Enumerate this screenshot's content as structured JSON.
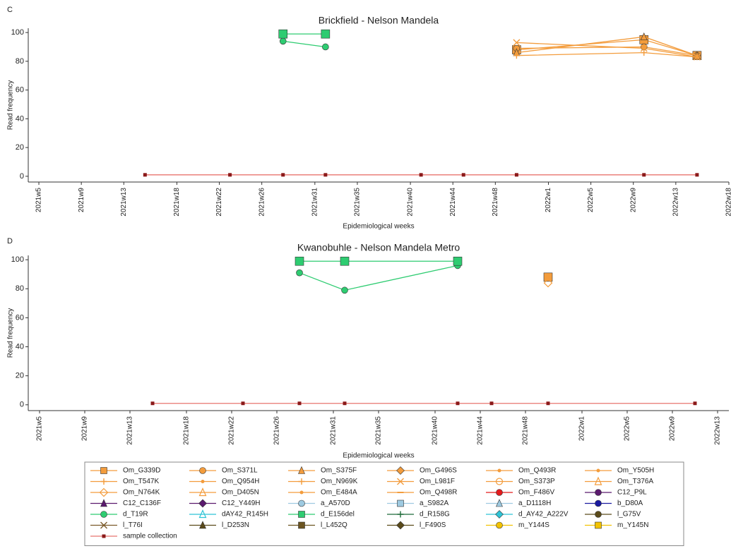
{
  "chart_data": [
    {
      "type": "line",
      "label": "C",
      "title": "Brickfield - Nelson Mandela",
      "xlabel": "Epidemiological weeks",
      "ylabel": "Read frequency",
      "x": [
        15,
        23,
        28,
        32,
        41,
        45,
        50,
        62,
        67
      ],
      "xlim": [
        4,
        70
      ],
      "xticks": [
        {
          "value": 5,
          "label": "2021w5"
        },
        {
          "value": 9,
          "label": "2021w9"
        },
        {
          "value": 13,
          "label": "2021w13"
        },
        {
          "value": 18,
          "label": "2021w18"
        },
        {
          "value": 22,
          "label": "2021w22"
        },
        {
          "value": 26,
          "label": "2021w26"
        },
        {
          "value": 31,
          "label": "2021w31"
        },
        {
          "value": 35,
          "label": "2021w35"
        },
        {
          "value": 40,
          "label": "2021w40"
        },
        {
          "value": 44,
          "label": "2021w44"
        },
        {
          "value": 48,
          "label": "2021w48"
        },
        {
          "value": 53,
          "label": "2022w1"
        },
        {
          "value": 57,
          "label": "2022w5"
        },
        {
          "value": 61,
          "label": "2022w9"
        },
        {
          "value": 65,
          "label": "2022w13"
        },
        {
          "value": 70,
          "label": "2022w18"
        }
      ],
      "ylim": [
        -4,
        103
      ],
      "yticks": [
        0,
        20,
        40,
        60,
        80,
        100
      ],
      "series": [
        {
          "name": "sample collection",
          "color": "#e8756f",
          "marker_color": "#8b1a1a",
          "marker": "small-square",
          "values": [
            1,
            1,
            1,
            1,
            1,
            1,
            1,
            1,
            1
          ]
        },
        {
          "name": "d_T19R",
          "color": "#2ecc71",
          "marker_color": "#2ecc71",
          "marker": "circle",
          "values": [
            null,
            null,
            94,
            90,
            null,
            null,
            null,
            null,
            null
          ]
        },
        {
          "name": "d_E156del",
          "color": "#2ecc71",
          "marker_color": "#2ecc71",
          "marker": "square",
          "values": [
            null,
            null,
            99,
            99,
            null,
            null,
            null,
            null,
            null
          ]
        },
        {
          "name": "Om_G339D",
          "color": "#f39c3c",
          "marker_color": "#f39c3c",
          "marker": "square",
          "values": [
            null,
            null,
            null,
            null,
            null,
            null,
            88,
            95,
            84
          ]
        },
        {
          "name": "Om_S371L",
          "color": "#f39c3c",
          "marker_color": "#f39c3c",
          "marker": "circle",
          "values": [
            null,
            null,
            null,
            null,
            null,
            null,
            89,
            90,
            84
          ]
        },
        {
          "name": "Om_S375F",
          "color": "#f39c3c",
          "marker_color": "#f39c3c",
          "marker": "triangle",
          "values": [
            null,
            null,
            null,
            null,
            null,
            null,
            86,
            97,
            84
          ]
        },
        {
          "name": "Om_L981F",
          "color": "#f39c3c",
          "marker_color": "#f39c3c",
          "marker": "x",
          "values": [
            null,
            null,
            null,
            null,
            null,
            null,
            93,
            89,
            83
          ]
        },
        {
          "name": "Om_T547K",
          "color": "#f39c3c",
          "marker_color": "#f39c3c",
          "marker": "plus",
          "values": [
            null,
            null,
            null,
            null,
            null,
            null,
            84,
            86,
            83
          ]
        }
      ]
    },
    {
      "type": "line",
      "label": "D",
      "title": "Kwanobuhle - Nelson Mandela Metro",
      "xlabel": "Epidemiological weeks",
      "ylabel": "Read frequency",
      "x": [
        15,
        23,
        28,
        32,
        42,
        45,
        50,
        63
      ],
      "xlim": [
        4,
        66
      ],
      "xticks": [
        {
          "value": 5,
          "label": "2021w5"
        },
        {
          "value": 9,
          "label": "2021w9"
        },
        {
          "value": 13,
          "label": "2021w13"
        },
        {
          "value": 18,
          "label": "2021w18"
        },
        {
          "value": 22,
          "label": "2021w22"
        },
        {
          "value": 26,
          "label": "2021w26"
        },
        {
          "value": 31,
          "label": "2021w31"
        },
        {
          "value": 35,
          "label": "2021w35"
        },
        {
          "value": 40,
          "label": "2021w40"
        },
        {
          "value": 44,
          "label": "2021w44"
        },
        {
          "value": 48,
          "label": "2021w48"
        },
        {
          "value": 53,
          "label": "2022w1"
        },
        {
          "value": 57,
          "label": "2022w5"
        },
        {
          "value": 61,
          "label": "2022w9"
        },
        {
          "value": 65,
          "label": "2022w13"
        }
      ],
      "ylim": [
        -4,
        103
      ],
      "yticks": [
        0,
        20,
        40,
        60,
        80,
        100
      ],
      "series": [
        {
          "name": "sample collection",
          "color": "#e8756f",
          "marker_color": "#8b1a1a",
          "marker": "small-square",
          "values": [
            1,
            1,
            1,
            1,
            1,
            1,
            1,
            1
          ]
        },
        {
          "name": "d_T19R",
          "color": "#2ecc71",
          "marker_color": "#2ecc71",
          "marker": "circle",
          "values": [
            null,
            null,
            91,
            79,
            96,
            null,
            null,
            null
          ]
        },
        {
          "name": "d_E156del",
          "color": "#2ecc71",
          "marker_color": "#2ecc71",
          "marker": "square",
          "values": [
            null,
            null,
            99,
            99,
            99,
            null,
            null,
            null
          ]
        },
        {
          "name": "Om_G339D",
          "color": "#f39c3c",
          "marker_color": "#f39c3c",
          "marker": "square",
          "values": [
            null,
            null,
            null,
            null,
            null,
            null,
            88,
            null
          ]
        },
        {
          "name": "Om_N764K",
          "color": "#f39c3c",
          "marker_color": "#f39c3c",
          "marker": "hollow-diamond",
          "values": [
            null,
            null,
            null,
            null,
            null,
            null,
            84,
            null
          ]
        }
      ]
    }
  ],
  "legend": {
    "entries": [
      {
        "name": "Om_G339D",
        "color": "#f39c3c",
        "marker": "square"
      },
      {
        "name": "Om_S371L",
        "color": "#f39c3c",
        "marker": "circle"
      },
      {
        "name": "Om_S375F",
        "color": "#f39c3c",
        "marker": "triangle"
      },
      {
        "name": "Om_G496S",
        "color": "#f39c3c",
        "marker": "diamond"
      },
      {
        "name": "Om_Q493R",
        "color": "#f39c3c",
        "marker": "dot"
      },
      {
        "name": "Om_Y505H",
        "color": "#f39c3c",
        "marker": "dot"
      },
      {
        "name": "Om_T547K",
        "color": "#f39c3c",
        "marker": "plus"
      },
      {
        "name": "Om_Q954H",
        "color": "#f39c3c",
        "marker": "dot"
      },
      {
        "name": "Om_N969K",
        "color": "#f39c3c",
        "marker": "plus"
      },
      {
        "name": "Om_L981F",
        "color": "#f39c3c",
        "marker": "x"
      },
      {
        "name": "Om_S373P",
        "color": "#f39c3c",
        "marker": "hollow-circle"
      },
      {
        "name": "Om_T376A",
        "color": "#f39c3c",
        "marker": "hollow-triangle"
      },
      {
        "name": "Om_N764K",
        "color": "#f39c3c",
        "marker": "hollow-diamond"
      },
      {
        "name": "Om_D405N",
        "color": "#f39c3c",
        "marker": "hollow-triangle"
      },
      {
        "name": "Om_E484A",
        "color": "#f39c3c",
        "marker": "dot"
      },
      {
        "name": "Om_Q498R",
        "color": "#f39c3c",
        "marker": "dash"
      },
      {
        "name": "Om_F486V",
        "color": "#e31a1c",
        "marker": "circle"
      },
      {
        "name": "C12_P9L",
        "color": "#5b1a6e",
        "marker": "circle"
      },
      {
        "name": "C12_C136F",
        "color": "#5b1a6e",
        "marker": "triangle"
      },
      {
        "name": "C12_Y449H",
        "color": "#5b1a6e",
        "marker": "diamond"
      },
      {
        "name": "a_A570D",
        "color": "#9ecae1",
        "marker": "circle"
      },
      {
        "name": "a_S982A",
        "color": "#9ecae1",
        "marker": "square"
      },
      {
        "name": "a_D1118H",
        "color": "#9ecae1",
        "marker": "triangle"
      },
      {
        "name": "b_D80A",
        "color": "#1a1aa0",
        "marker": "circle"
      },
      {
        "name": "d_T19R",
        "color": "#2ecc71",
        "marker": "circle"
      },
      {
        "name": "dAY42_R145H",
        "color": "#2ec4d6",
        "marker": "hollow-triangle"
      },
      {
        "name": "d_E156del",
        "color": "#2ecc71",
        "marker": "square"
      },
      {
        "name": "d_R158G",
        "color": "#1e6b3a",
        "marker": "plus"
      },
      {
        "name": "d_AY42_A222V",
        "color": "#2ec4d6",
        "marker": "diamond"
      },
      {
        "name": "l_G75V",
        "color": "#5a4a1a",
        "marker": "circle"
      },
      {
        "name": "l_T76I",
        "color": "#7a5a2a",
        "marker": "x"
      },
      {
        "name": "l_D253N",
        "color": "#5a4a1a",
        "marker": "triangle"
      },
      {
        "name": "l_L452Q",
        "color": "#6b5420",
        "marker": "square"
      },
      {
        "name": "l_F490S",
        "color": "#5a4a1a",
        "marker": "diamond"
      },
      {
        "name": "m_Y144S",
        "color": "#f2c200",
        "marker": "circle"
      },
      {
        "name": "m_Y145N",
        "color": "#f2c200",
        "marker": "square"
      },
      {
        "name": "sample collection",
        "color": "#e8756f",
        "marker": "small-square"
      }
    ]
  }
}
